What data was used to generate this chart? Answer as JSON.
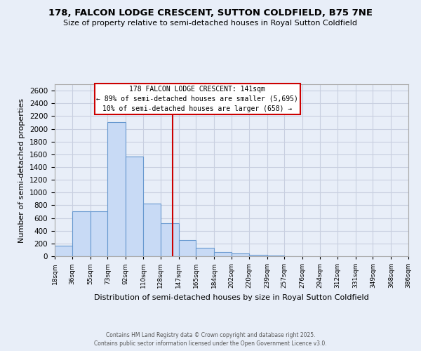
{
  "title1": "178, FALCON LODGE CRESCENT, SUTTON COLDFIELD, B75 7NE",
  "title2": "Size of property relative to semi-detached houses in Royal Sutton Coldfield",
  "xlabel": "Distribution of semi-detached houses by size in Royal Sutton Coldfield",
  "ylabel": "Number of semi-detached properties",
  "annotation_line1": "178 FALCON LODGE CRESCENT: 141sqm",
  "annotation_line2": "← 89% of semi-detached houses are smaller (5,695)",
  "annotation_line3": "10% of semi-detached houses are larger (658) →",
  "footer1": "Contains HM Land Registry data © Crown copyright and database right 2025.",
  "footer2": "Contains public sector information licensed under the Open Government Licence v3.0.",
  "bin_labels": [
    "18sqm",
    "36sqm",
    "55sqm",
    "73sqm",
    "92sqm",
    "110sqm",
    "128sqm",
    "147sqm",
    "165sqm",
    "184sqm",
    "202sqm",
    "220sqm",
    "239sqm",
    "257sqm",
    "276sqm",
    "294sqm",
    "312sqm",
    "331sqm",
    "349sqm",
    "368sqm",
    "386sqm"
  ],
  "bin_edges": [
    18,
    36,
    55,
    73,
    92,
    110,
    128,
    147,
    165,
    184,
    202,
    220,
    239,
    257,
    276,
    294,
    312,
    331,
    349,
    368,
    386
  ],
  "bar_heights": [
    170,
    700,
    700,
    2100,
    1560,
    830,
    520,
    250,
    130,
    70,
    40,
    20,
    10,
    5,
    0,
    0,
    0,
    0,
    0,
    0
  ],
  "bar_color": "#c8daf5",
  "bar_edge_color": "#6899d0",
  "vline_x": 141,
  "vline_color": "#cc0000",
  "ylim": [
    0,
    2700
  ],
  "yticks": [
    0,
    200,
    400,
    600,
    800,
    1000,
    1200,
    1400,
    1600,
    1800,
    2000,
    2200,
    2400,
    2600
  ],
  "grid_color": "#c8cfe0",
  "background_color": "#e8eef8",
  "plot_bg_color": "#e8eef8",
  "annotation_box_color": "#cc0000",
  "annotation_fill": "#ffffff"
}
